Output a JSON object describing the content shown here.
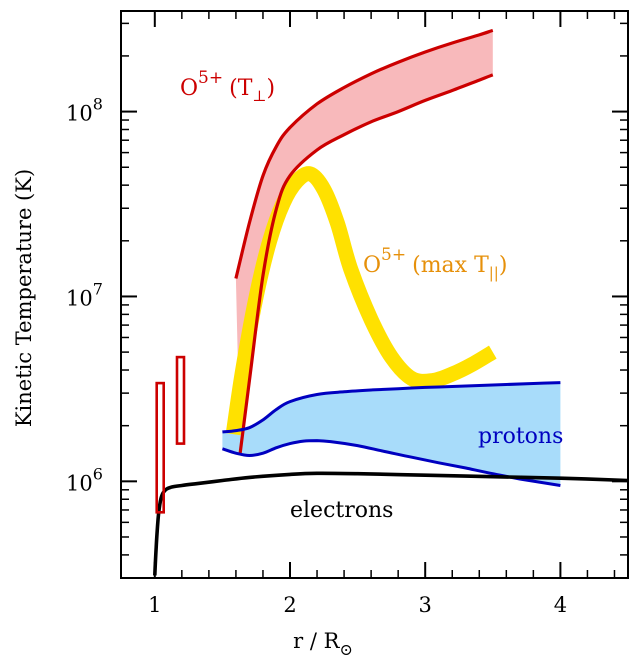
{
  "chart_data": {
    "type": "line",
    "xlabel": "r / R",
    "xlabel_subscript": "⊙",
    "ylabel": "Kinetic Temperature (K)",
    "xlim": [
      0.75,
      4.5
    ],
    "ylim": [
      300000,
      350000000
    ],
    "y_scale": "log",
    "grid": false,
    "x_ticks": [
      1,
      2,
      3,
      4
    ],
    "x_tick_labels": [
      "1",
      "2",
      "3",
      "4"
    ],
    "y_ticks": [
      1000000,
      10000000,
      100000000
    ],
    "y_tick_labels": [
      {
        "base": "10",
        "exp": "6"
      },
      {
        "base": "10",
        "exp": "7"
      },
      {
        "base": "10",
        "exp": "8"
      }
    ],
    "colors": {
      "o5_perp": "#cc0000",
      "o5_perp_fill": "#f8b9bb",
      "o5_par": "#ffe100",
      "protons": "#0000c0",
      "protons_fill": "#a8dcfa",
      "electrons": "#000000",
      "uvcs_bars": "#cc0000"
    },
    "annotations": {
      "o5_perp": {
        "base": "O",
        "sup": "5+",
        "tail": "(T",
        "sub": "⊥",
        "close": ")"
      },
      "o5_par": {
        "base": "O",
        "sup": "5+",
        "tail": "(max T",
        "sub": "||",
        "close": ")"
      },
      "protons": "protons",
      "electrons": "electrons"
    },
    "series": [
      {
        "key": "o5_perp_upper",
        "x": [
          1.6,
          1.7,
          1.8,
          1.9,
          2.0,
          2.2,
          2.4,
          2.6,
          2.8,
          3.0,
          3.2,
          3.4,
          3.5
        ],
        "y": [
          12500000,
          25000000,
          45000000,
          65000000,
          82000000,
          110000000,
          135000000,
          160000000,
          185000000,
          210000000,
          235000000,
          260000000,
          275000000
        ]
      },
      {
        "key": "o5_perp_lower",
        "x": [
          1.63,
          1.7,
          1.8,
          1.9,
          2.0,
          2.2,
          2.4,
          2.6,
          2.8,
          3.0,
          3.2,
          3.4,
          3.5
        ],
        "y": [
          1400000,
          3500000,
          13000000,
          30000000,
          45000000,
          62000000,
          75000000,
          88000000,
          100000000,
          115000000,
          130000000,
          148000000,
          158000000
        ]
      },
      {
        "key": "o5_par_max",
        "x": [
          1.58,
          1.65,
          1.75,
          1.85,
          1.95,
          2.05,
          2.15,
          2.25,
          2.35,
          2.45,
          2.6,
          2.75,
          2.9,
          3.05,
          3.2,
          3.35,
          3.5
        ],
        "y": [
          1800000,
          4000000,
          10000000,
          20000000,
          32000000,
          42000000,
          46000000,
          38000000,
          25000000,
          14000000,
          7500000,
          4700000,
          3600000,
          3500000,
          3800000,
          4300000,
          5000000
        ]
      },
      {
        "key": "protons_upper",
        "x": [
          1.5,
          1.6,
          1.7,
          1.8,
          1.9,
          2.0,
          2.2,
          2.4,
          2.6,
          2.8,
          3.0,
          3.2,
          3.4,
          3.6,
          3.8,
          4.0
        ],
        "y": [
          1850000,
          1880000,
          1950000,
          2150000,
          2450000,
          2700000,
          2950000,
          3050000,
          3120000,
          3170000,
          3220000,
          3260000,
          3300000,
          3340000,
          3380000,
          3420000
        ]
      },
      {
        "key": "protons_lower",
        "x": [
          1.5,
          1.6,
          1.7,
          1.8,
          1.9,
          2.0,
          2.1,
          2.2,
          2.3,
          2.5,
          2.7,
          2.9,
          3.1,
          3.3,
          3.5,
          3.7,
          4.0
        ],
        "y": [
          1500000,
          1420000,
          1380000,
          1420000,
          1520000,
          1600000,
          1650000,
          1660000,
          1640000,
          1560000,
          1450000,
          1350000,
          1260000,
          1180000,
          1100000,
          1030000,
          950000
        ]
      },
      {
        "key": "electrons",
        "x": [
          1.0,
          1.01,
          1.02,
          1.03,
          1.05,
          1.08,
          1.12,
          1.2,
          1.3,
          1.5,
          1.7,
          2.0,
          2.2,
          2.5,
          3.0,
          3.5,
          4.0,
          4.5
        ],
        "y": [
          310000,
          440000,
          570000,
          690000,
          830000,
          900000,
          930000,
          950000,
          970000,
          1010000,
          1050000,
          1090000,
          1105000,
          1100000,
          1080000,
          1060000,
          1040000,
          1010000
        ]
      }
    ],
    "uvcs_bars": [
      {
        "x": 1.04,
        "ymin": 680000,
        "ymax": 3400000
      },
      {
        "x": 1.19,
        "ymin": 1600000,
        "ymax": 4700000
      }
    ]
  }
}
